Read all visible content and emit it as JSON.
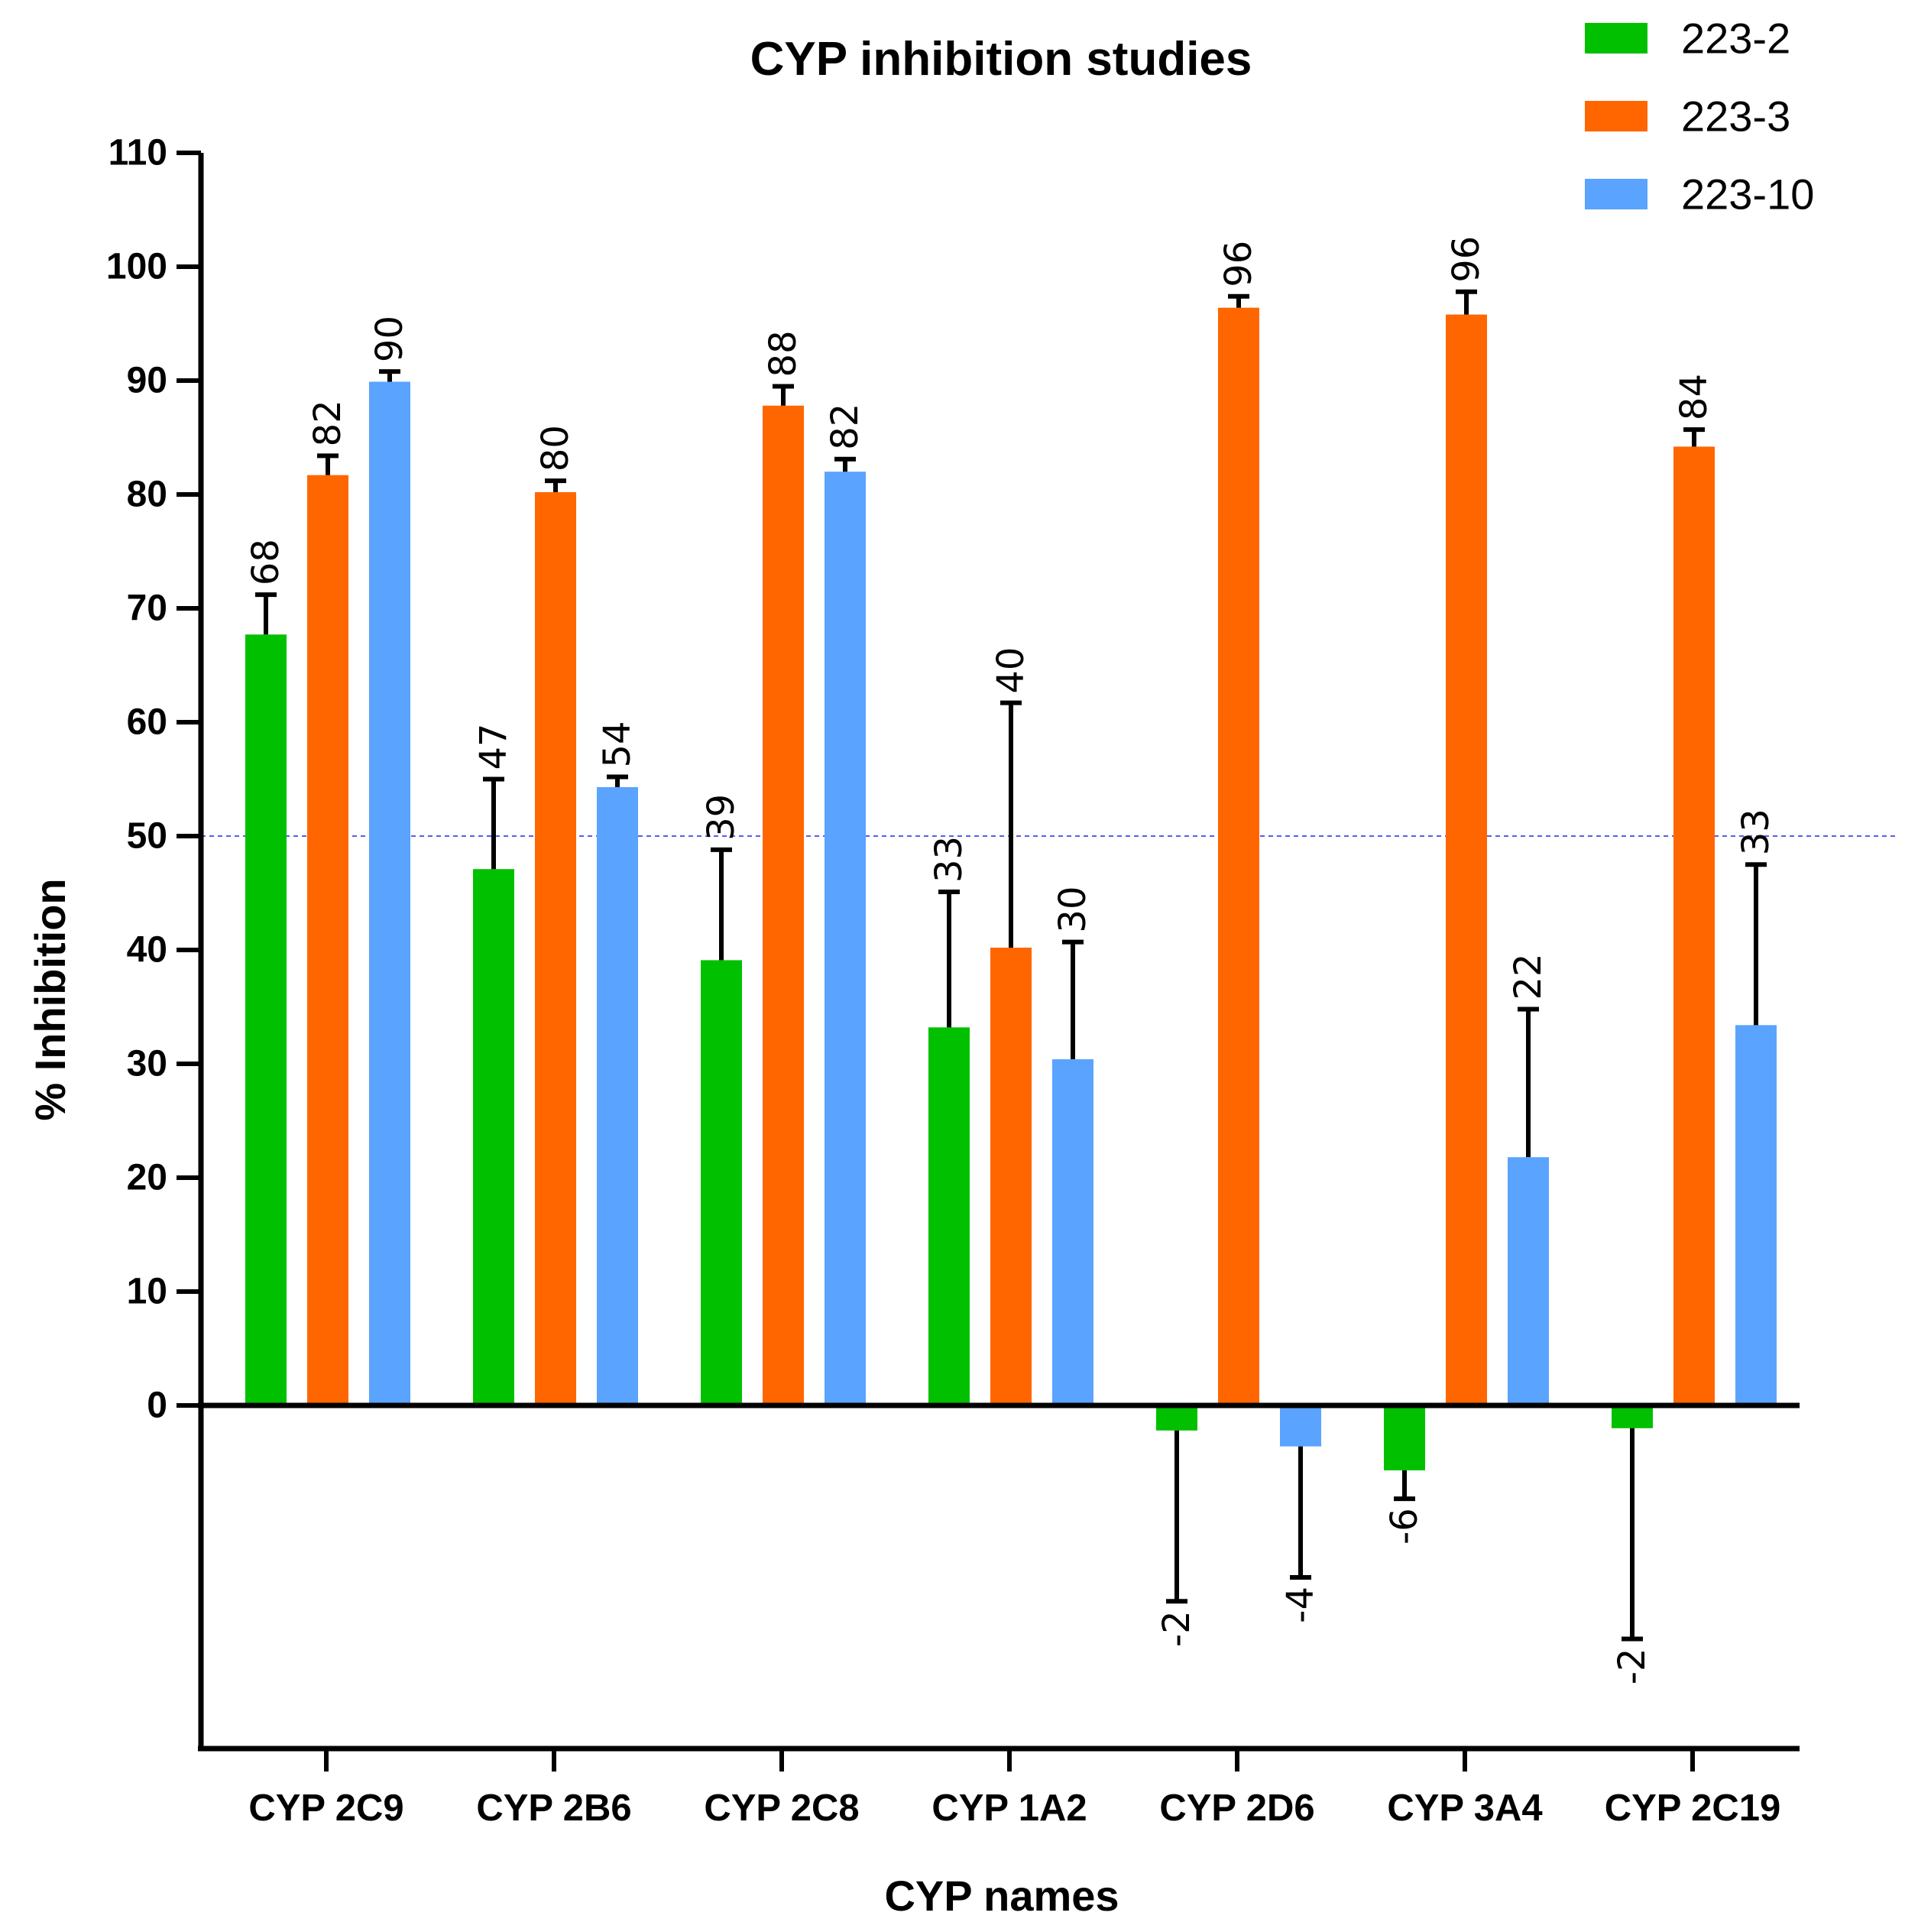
{
  "chart_data": {
    "type": "bar",
    "title": "CYP inhibition studies",
    "xlabel": "CYP names",
    "ylabel": "% Inhibition",
    "ylim": [
      -30,
      110
    ],
    "yticks": [
      0,
      10,
      20,
      30,
      40,
      50,
      60,
      70,
      80,
      90,
      100,
      110
    ],
    "reference_line": 50,
    "legend_position": "top-right",
    "categories": [
      "CYP 2C9",
      "CYP 2B6",
      "CYP 2C8",
      "CYP 1A2",
      "CYP 2D6",
      "CYP 3A4",
      "CYP 2C19"
    ],
    "series": [
      {
        "name": "223-2",
        "color": "#00c000",
        "values": [
          67.7,
          47.1,
          39.1,
          33.2,
          -2.2,
          -5.7,
          -2
        ],
        "error": [
          3.5,
          7.9,
          9.7,
          11.9,
          15,
          2.5,
          18.5
        ],
        "labels": [
          "68",
          "47",
          "39",
          "33",
          "-2",
          "-6",
          "-2"
        ]
      },
      {
        "name": "223-3",
        "color": "#ff6600",
        "values": [
          81.7,
          80.2,
          87.8,
          40.2,
          96.4,
          95.8,
          84.2
        ],
        "error": [
          1.7,
          1.0,
          1.7,
          21.5,
          1.0,
          2.0,
          1.5
        ],
        "labels": [
          "82",
          "80",
          "88",
          "40",
          "96",
          "96",
          "84"
        ]
      },
      {
        "name": "223-10",
        "color": "#5aa3ff",
        "values": [
          89.9,
          54.3,
          82.0,
          30.4,
          -3.6,
          21.8,
          33.4
        ],
        "error": [
          0.9,
          0.9,
          1.1,
          10.3,
          11.5,
          13.0,
          14.1
        ],
        "labels": [
          "90",
          "54",
          "82",
          "30",
          "-4",
          "22",
          "33"
        ]
      }
    ]
  }
}
